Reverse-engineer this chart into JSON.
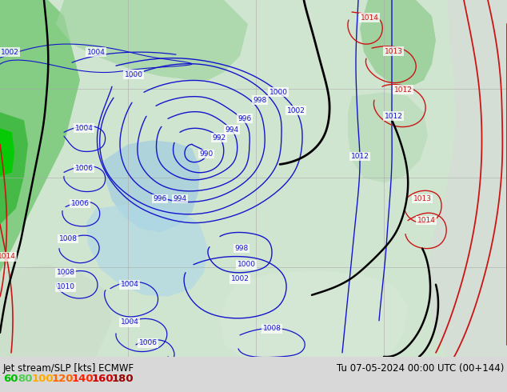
{
  "title_left": "Jet stream/SLP [kts] ECMWF",
  "title_right": "Tu 07-05-2024 00:00 UTC (00+144)",
  "legend_values": [
    "60",
    "80",
    "100",
    "120",
    "140",
    "160",
    "180"
  ],
  "legend_colors_hex": [
    "#00bb00",
    "#55cc55",
    "#ffaa00",
    "#ff6600",
    "#ff2200",
    "#cc0000",
    "#990000"
  ],
  "fig_width": 6.34,
  "fig_height": 4.9,
  "dpi": 100,
  "map_bg": "#d8ead8",
  "ocean_bg": "#c8dce0",
  "bottom_bar_color": "#d8d8d8",
  "blue": "#1414cc",
  "red": "#cc1414",
  "black": "#000000",
  "label_fontsize": 6.5,
  "title_fontsize": 8.5,
  "legend_fontsize": 9.5
}
